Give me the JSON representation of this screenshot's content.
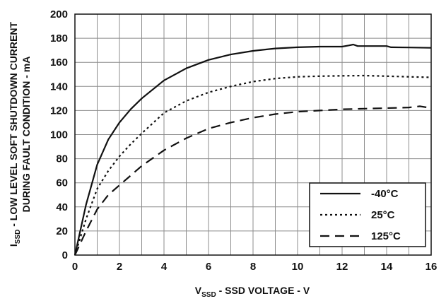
{
  "chart_data": {
    "type": "line",
    "title": "",
    "xlabel": {
      "prefix": "V",
      "sub": "SSD",
      "suffix": " - SSD VOLTAGE - V"
    },
    "ylabel": {
      "line1_prefix": "I",
      "line1_sub": "SSD",
      "line1_suffix": " - LOW LEVEL SOFT SHUTDOWN CURRENT",
      "line2": "DURING FAULT CONDITION - mA"
    },
    "xlim": [
      0,
      16
    ],
    "ylim": [
      0,
      200
    ],
    "xticks": [
      "0",
      "2",
      "4",
      "6",
      "8",
      "10",
      "12",
      "14",
      "16"
    ],
    "yticks": [
      "0",
      "20",
      "40",
      "60",
      "80",
      "100",
      "120",
      "140",
      "160",
      "180",
      "200"
    ],
    "grid": true,
    "legend_position": "bottom-right",
    "series": [
      {
        "name": "-40°C",
        "style": "solid",
        "x": [
          0,
          0.5,
          1,
          1.5,
          2,
          2.5,
          3,
          4,
          5,
          6,
          7,
          8,
          9,
          10,
          11,
          12,
          12.3,
          12.5,
          12.7,
          13,
          14,
          14.2,
          15,
          16
        ],
        "y": [
          0,
          42,
          75,
          96,
          110,
          121,
          130,
          145,
          155,
          162,
          166.5,
          169.5,
          171.5,
          172.5,
          173,
          173,
          174,
          174.8,
          173.5,
          173.5,
          173.5,
          172.5,
          172.3,
          172
        ]
      },
      {
        "name": "25°C",
        "style": "dotted",
        "x": [
          0,
          0.5,
          1,
          1.5,
          2,
          2.5,
          3,
          4,
          5,
          6,
          7,
          8,
          9,
          10,
          11,
          12,
          13,
          14,
          15,
          16
        ],
        "y": [
          0,
          30,
          55,
          70,
          82,
          92,
          101,
          118,
          128,
          135,
          140,
          144,
          146.5,
          148,
          148.5,
          148.8,
          149,
          148.5,
          148,
          147.5
        ]
      },
      {
        "name": "125°C",
        "style": "dashed",
        "x": [
          0,
          0.5,
          1,
          1.5,
          2,
          2.5,
          3,
          4,
          5,
          6,
          7,
          8,
          9,
          10,
          11,
          12,
          13,
          14,
          15,
          15.5,
          16
        ],
        "y": [
          0,
          20,
          38,
          50,
          58,
          66,
          74,
          87,
          97,
          105,
          110,
          114,
          117,
          119,
          120,
          121,
          121.5,
          122,
          122.5,
          123.5,
          122
        ]
      }
    ]
  }
}
